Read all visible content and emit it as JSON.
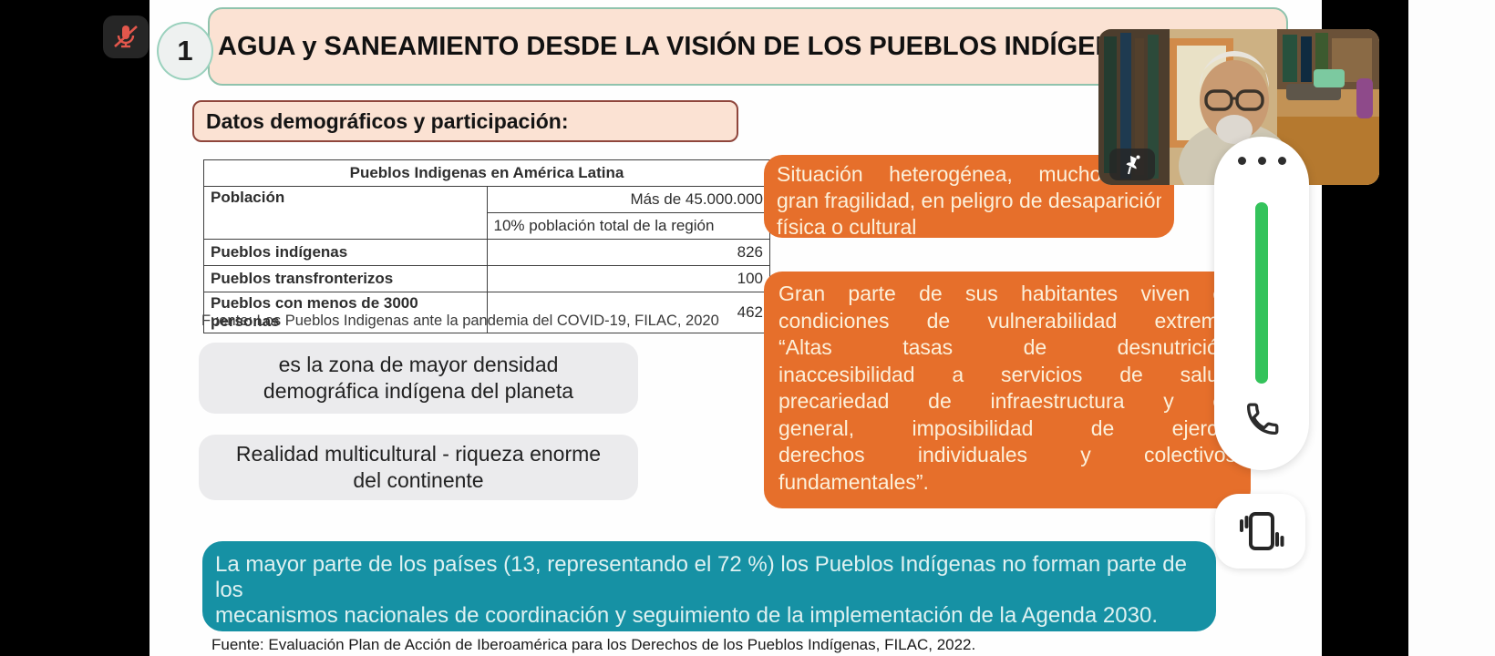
{
  "slide": {
    "number": "1",
    "title": "AGUA y SANEAMIENTO DESDE LA VISIÓN DE LOS PUEBLOS INDÍGENAS",
    "subtitle": "Datos demográficos y participación:",
    "table": {
      "title": "Pueblos Indigenas en América Latina",
      "rows": [
        {
          "label": "Población",
          "value": "Más de 45.000.000"
        },
        {
          "label": "",
          "value": "10% población total de la región"
        },
        {
          "label": "Pueblos indígenas",
          "value": "826"
        },
        {
          "label": "Pueblos transfronterizos",
          "value": "100"
        },
        {
          "label": "Pueblos con menos de 3000 personas",
          "value": "462"
        }
      ]
    },
    "source_1": "Fuente: Los Pueblos Indigenas ante la pandemia del COVID-19, FILAC, 2020",
    "grey_box_1": {
      "lines": [
        "es la zona de mayor densidad",
        "demográfica indígena del planeta"
      ]
    },
    "grey_box_2": {
      "lines": [
        "Realidad multicultural - riqueza enorme",
        "del continente"
      ]
    },
    "orange_box_1": {
      "color": "#e66f2b",
      "lines": [
        "Situación heterogénea, muchos en",
        "gran fragilidad, en peligro de desaparición",
        "física o cultural"
      ]
    },
    "orange_box_2": {
      "color": "#e66f2b",
      "lines": [
        "Gran parte de sus habitantes viven en",
        "condiciones de vulnerabilidad extrema:",
        "“Altas tasas de desnutrición,",
        "inaccesibilidad a servicios de salud,",
        "precariedad de infraestructura y en",
        "general, imposibilidad de ejercer",
        "derechos individuales y colectivos",
        "fundamentales”."
      ]
    },
    "teal_box": {
      "color": "#1691a4",
      "lines": [
        "La mayor parte de los países (13, representando el 72 %) los Pueblos Indígenas no forman parte de los",
        "mecanismos nacionales de coordinación y seguimiento de la implementación de la Agenda 2030."
      ]
    },
    "source_2": "Fuente: Evaluación Plan de Acción de Iberoamérica para los Derechos de los Pueblos Indígenas, FILAC, 2022."
  },
  "meeting": {
    "mic_icon": "microphone-muted",
    "mic_color": "#e2574c",
    "pin_icon": "pushpin",
    "controls": {
      "more_icon": "three-dots",
      "volume_color": "#34c35b",
      "call_icon": "phone-handset",
      "rotate_icon": "vibrating-phone"
    }
  },
  "android_nav": {
    "back_icon": "triangle-left",
    "home_icon": "circle",
    "menu_icon": "three-lines",
    "icon_color": "#6f6f6f"
  }
}
